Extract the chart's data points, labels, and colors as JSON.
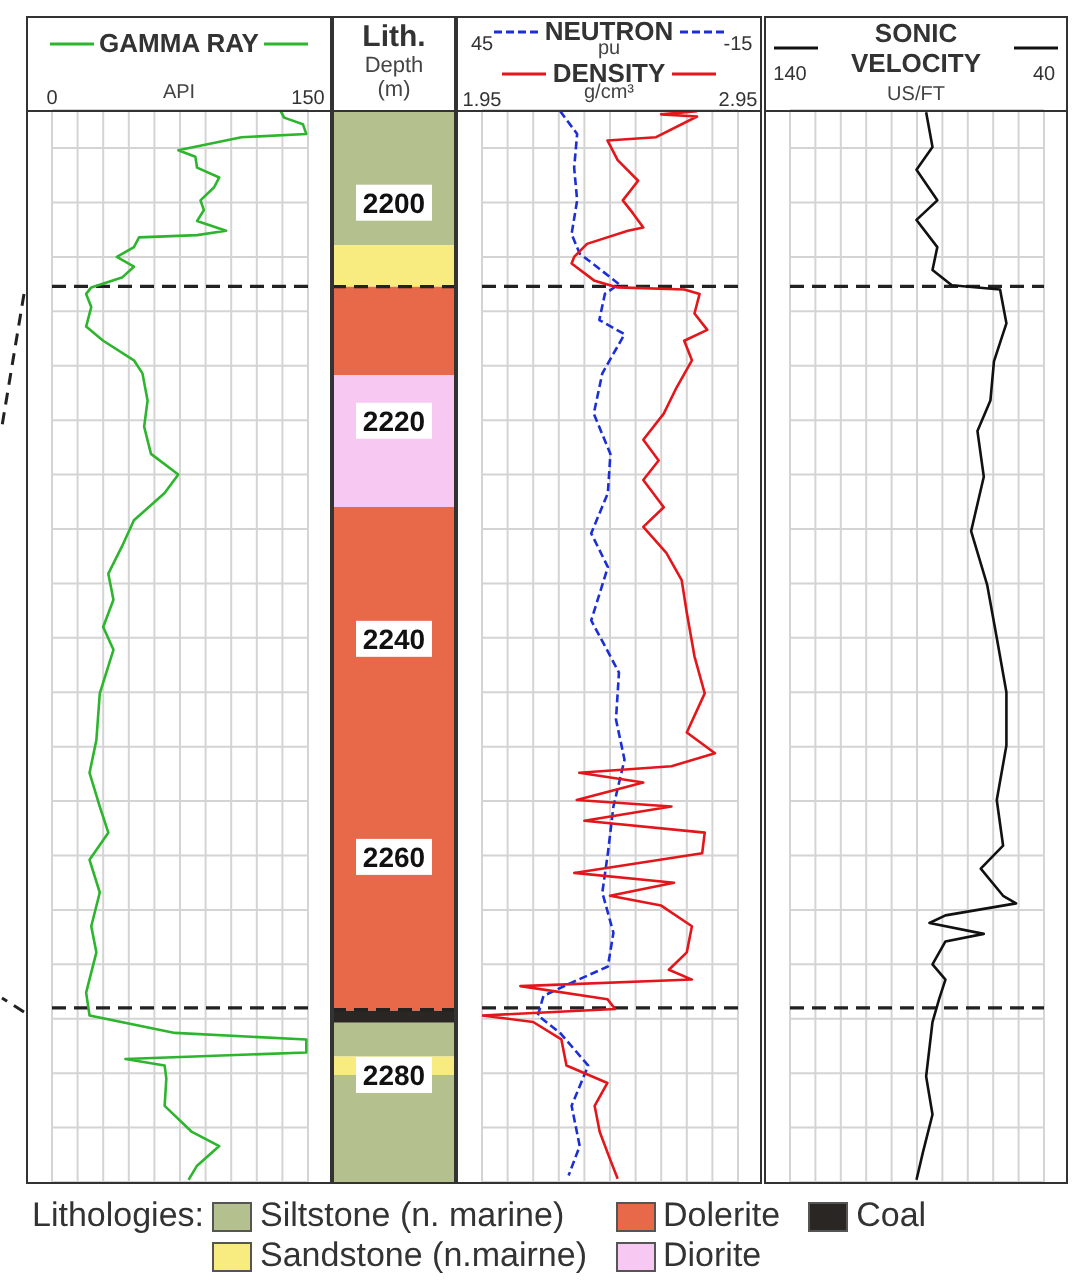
{
  "chart_data": [
    {
      "type": "line",
      "orientation": "horizontal",
      "legend": "top",
      "xlabel": "API",
      "xlim": [
        0,
        150
      ],
      "xticks": [
        0,
        {
          "value": 15,
          "label": null
        },
        {
          "value": 30,
          "label": null
        },
        {
          "value": 45,
          "label": null
        },
        {
          "value": 60,
          "label": null
        },
        {
          "value": 75,
          "label": null
        },
        {
          "value": 90,
          "label": null
        },
        {
          "value": 105,
          "label": null
        },
        {
          "value": 120,
          "label": null
        },
        {
          "value": 135,
          "label": null
        },
        150
      ],
      "ylim": [
        2290,
        2191.5
      ],
      "yticks": [
        {
          "value": 2195,
          "label": null
        },
        {
          "value": 2200,
          "label": null
        },
        {
          "value": 2205,
          "label": null
        },
        {
          "value": 2210,
          "label": null
        },
        {
          "value": 2215,
          "label": null
        },
        {
          "value": 2220,
          "label": null
        },
        {
          "value": 2225,
          "label": null
        },
        {
          "value": 2230,
          "label": null
        },
        {
          "value": 2235,
          "label": null
        },
        {
          "value": 2240,
          "label": null
        },
        {
          "value": 2245,
          "label": null
        },
        {
          "value": 2250,
          "label": null
        },
        {
          "value": 2255,
          "label": null
        },
        {
          "value": 2260,
          "label": null
        },
        {
          "value": 2265,
          "label": null
        },
        {
          "value": 2270,
          "label": null
        },
        {
          "value": 2275,
          "label": null
        },
        {
          "value": 2280,
          "label": null
        },
        {
          "value": 2285,
          "label": null
        }
      ],
      "grid": true,
      "tick_labels": "x",
      "ref_lines": [
        {
          "axis": "y",
          "value": 2207.7,
          "color": "#222222",
          "line_style": "dashed"
        },
        {
          "axis": "y",
          "value": 2274,
          "color": "#222222",
          "line_style": "dashed"
        }
      ],
      "series": [
        {
          "name": "GAMMA RAY",
          "color": "#2db52d",
          "line_style": "solid",
          "x": [
            2191.6,
            2192.2,
            2192.8,
            2193.7,
            2194.0,
            2195.2,
            2195.8,
            2196.8,
            2197.7,
            2198.6,
            2199.8,
            2200.7,
            2201.7,
            2202.6,
            2203.0,
            2203.2,
            2204.1,
            2205.0,
            2205.9,
            2206.9,
            2207.8,
            2208.4,
            2209.6,
            2211.4,
            2212.7,
            2214.5,
            2215.7,
            2218.2,
            2220.6,
            2223.1,
            2225.0,
            2226.7,
            2229.2,
            2231.6,
            2234.1,
            2236.5,
            2239.0,
            2241.1,
            2245.1,
            2249.4,
            2252.4,
            2255.5,
            2257.9,
            2260.4,
            2263.4,
            2266.5,
            2268.9,
            2272.6,
            2274.7,
            2276.3,
            2276.9,
            2278.1,
            2278.7,
            2279.3,
            2280.5,
            2283.0,
            2285.4,
            2286.7,
            2288.5,
            2289.8
          ],
          "values": [
            134,
            136,
            147,
            149,
            111,
            74,
            84,
            85,
            98,
            95,
            87,
            89,
            85,
            102,
            85,
            51,
            48,
            38,
            48,
            41,
            23,
            20,
            23,
            20,
            30,
            48,
            53,
            56,
            54,
            58,
            74,
            66,
            48,
            41,
            33,
            36,
            30,
            36,
            28,
            26,
            22,
            28,
            33,
            22,
            28,
            23,
            26,
            20,
            22,
            72,
            149,
            149,
            43,
            66,
            67,
            66,
            82,
            98,
            85,
            80
          ]
        }
      ]
    },
    {
      "type": "bar",
      "categories": [
        null
      ],
      "title": "Lith.",
      "ylabel": "Depth (m)",
      "legend": "bottom",
      "legend_title": "Lithologies:",
      "ylim": [
        2290,
        2191.5
      ],
      "yticks": [
        2200,
        2220,
        2240,
        2260,
        2280
      ],
      "tick_labels": "y",
      "ref_lines": [
        {
          "axis": "y",
          "value": 2207.7,
          "color": "#222222",
          "line_style": "dashed"
        },
        {
          "axis": "y",
          "value": 2274,
          "color": "#222222",
          "line_style": "dashed"
        }
      ],
      "series": [
        {
          "name": "Siltstone (n. marine)",
          "color": "#b5c08f",
          "values": [
            12.4
          ],
          "base": [
            2191.5
          ]
        },
        {
          "name": "Sandstone (n.mairne)",
          "color": "#f8ec80",
          "values": [
            3.8
          ],
          "base": [
            2203.9
          ]
        },
        {
          "name": "Dolerite",
          "color": "#e8684a",
          "values": [
            8.1
          ],
          "base": [
            2207.7
          ]
        },
        {
          "name": "Diorite",
          "color": "#f7c8f2",
          "values": [
            12.1
          ],
          "base": [
            2215.8
          ]
        },
        {
          "color": "#e8684a",
          "values": [
            46.2
          ],
          "base": [
            2227.9
          ]
        },
        {
          "name": "Coal",
          "color": "#2a2624",
          "values": [
            1.1
          ],
          "base": [
            2274.1
          ]
        },
        {
          "color": "#b5c08f",
          "values": [
            3.1
          ],
          "base": [
            2275.2
          ]
        },
        {
          "color": "#f8ec80",
          "values": [
            1.7
          ],
          "base": [
            2278.3
          ]
        },
        {
          "color": "#b5c08f",
          "values": [
            10
          ],
          "base": [
            2280
          ]
        }
      ]
    },
    {
      "type": "line",
      "orientation": "horizontal",
      "legend": "top",
      "xlabel": "g/cm³",
      "x2label": "pu",
      "xlim": [
        1.95,
        2.95
      ],
      "xticks": [
        1.95,
        {
          "value": 2.05,
          "label": null
        },
        {
          "value": 2.15,
          "label": null
        },
        {
          "value": 2.25,
          "label": null
        },
        {
          "value": 2.35,
          "label": null
        },
        {
          "value": 2.45,
          "label": null
        },
        {
          "value": 2.55,
          "label": null
        },
        {
          "value": 2.65,
          "label": null
        },
        {
          "value": 2.75,
          "label": null
        },
        {
          "value": 2.85,
          "label": null
        },
        2.95
      ],
      "x2lim": [
        45,
        -15
      ],
      "x2ticks": [
        45,
        -15
      ],
      "ylim": [
        2290,
        2191.5
      ],
      "yticks": [
        {
          "value": 2195,
          "label": null
        },
        {
          "value": 2200,
          "label": null
        },
        {
          "value": 2205,
          "label": null
        },
        {
          "value": 2210,
          "label": null
        },
        {
          "value": 2215,
          "label": null
        },
        {
          "value": 2220,
          "label": null
        },
        {
          "value": 2225,
          "label": null
        },
        {
          "value": 2230,
          "label": null
        },
        {
          "value": 2235,
          "label": null
        },
        {
          "value": 2240,
          "label": null
        },
        {
          "value": 2245,
          "label": null
        },
        {
          "value": 2250,
          "label": null
        },
        {
          "value": 2255,
          "label": null
        },
        {
          "value": 2260,
          "label": null
        },
        {
          "value": 2265,
          "label": null
        },
        {
          "value": 2270,
          "label": null
        },
        {
          "value": 2275,
          "label": null
        },
        {
          "value": 2280,
          "label": null
        },
        {
          "value": 2285,
          "label": null
        }
      ],
      "grid": true,
      "tick_labels": "x",
      "ref_lines": [
        {
          "axis": "y",
          "value": 2207.7,
          "color": "#222222",
          "line_style": "dashed"
        },
        {
          "axis": "y",
          "value": 2274,
          "color": "#222222",
          "line_style": "dashed"
        }
      ],
      "series": [
        {
          "name": "NEUTRON",
          "color": "#1c2fd6",
          "line_style": "dashed",
          "axis": "x2",
          "x": [
            2191.6,
            2193.7,
            2196.8,
            2199.8,
            2202.9,
            2204.7,
            2205.9,
            2207.5,
            2208.4,
            2210.8,
            2212.1,
            2215.7,
            2219.4,
            2223.1,
            2226.7,
            2230.4,
            2233.5,
            2238.4,
            2241.7,
            2243.2,
            2247.5,
            2251.2,
            2255.5,
            2259.8,
            2263.4,
            2267.1,
            2270.2,
            2271.7,
            2272.9,
            2274.7,
            2276.3,
            2279.3,
            2283.0,
            2286.7,
            2289.4
          ],
          "values": [
            26.7,
            22.7,
            23.4,
            22.7,
            24,
            22.1,
            18.1,
            12.9,
            16.2,
            17.5,
            11.6,
            16.8,
            18.8,
            14.9,
            15.5,
            19.4,
            15.5,
            19.4,
            14.9,
            12.9,
            13.6,
            11.6,
            14.2,
            15.5,
            16.8,
            14.2,
            15.5,
            24.1,
            30.6,
            31.9,
            26.7,
            20.1,
            24,
            22.1,
            24.7
          ]
        },
        {
          "name": "DENSITY",
          "color": "#e3161b",
          "line_style": "solid",
          "x": [
            2191.6,
            2191.9,
            2192.1,
            2194.0,
            2194.3,
            2196.1,
            2198.0,
            2199.8,
            2201.0,
            2202.3,
            2202.6,
            2203.8,
            2205.0,
            2205.6,
            2207.2,
            2207.8,
            2208.0,
            2208.4,
            2210.2,
            2211.7,
            2212.7,
            2214.5,
            2217.0,
            2219.4,
            2221.8,
            2223.7,
            2225.5,
            2228.0,
            2229.8,
            2232.2,
            2234.7,
            2237.7,
            2241.7,
            2245.1,
            2248.7,
            2250.6,
            2251.8,
            2252.4,
            2253.3,
            2254.9,
            2255.5,
            2256.8,
            2257.9,
            2259.8,
            2261.6,
            2262.5,
            2263.7,
            2264.6,
            2266.5,
            2268.9,
            2270.5,
            2271.4,
            2272.0,
            2273.2,
            2274.1,
            2274.7,
            2275.3,
            2276.9,
            2279.3,
            2280.9,
            2283.0,
            2285.4,
            2287.9,
            2289.7
          ],
          "values": [
            2.79,
            2.65,
            2.79,
            2.63,
            2.44,
            2.48,
            2.56,
            2.5,
            2.54,
            2.58,
            2.52,
            2.36,
            2.31,
            2.3,
            2.39,
            2.48,
            2.74,
            2.8,
            2.78,
            2.83,
            2.74,
            2.77,
            2.71,
            2.66,
            2.58,
            2.64,
            2.58,
            2.66,
            2.58,
            2.67,
            2.73,
            2.75,
            2.78,
            2.82,
            2.75,
            2.86,
            2.69,
            2.33,
            2.58,
            2.32,
            2.69,
            2.35,
            2.82,
            2.81,
            2.31,
            2.7,
            2.45,
            2.65,
            2.77,
            2.75,
            2.68,
            2.77,
            2.1,
            2.44,
            2.47,
            1.95,
            2.15,
            2.26,
            2.28,
            2.44,
            2.39,
            2.41,
            2.45,
            2.48
          ]
        }
      ]
    },
    {
      "type": "line",
      "orientation": "horizontal",
      "legend": "top",
      "xlabel": "US/FT",
      "xlim": [
        140,
        40
      ],
      "xticks": [
        140,
        {
          "value": 130,
          "label": null
        },
        {
          "value": 120,
          "label": null
        },
        {
          "value": 110,
          "label": null
        },
        {
          "value": 100,
          "label": null
        },
        {
          "value": 90,
          "label": null
        },
        {
          "value": 80,
          "label": null
        },
        {
          "value": 70,
          "label": null
        },
        {
          "value": 60,
          "label": null
        },
        {
          "value": 50,
          "label": null
        },
        40
      ],
      "ylim": [
        2290,
        2191.5
      ],
      "yticks": [
        {
          "value": 2195,
          "label": null
        },
        {
          "value": 2200,
          "label": null
        },
        {
          "value": 2205,
          "label": null
        },
        {
          "value": 2210,
          "label": null
        },
        {
          "value": 2215,
          "label": null
        },
        {
          "value": 2220,
          "label": null
        },
        {
          "value": 2225,
          "label": null
        },
        {
          "value": 2230,
          "label": null
        },
        {
          "value": 2235,
          "label": null
        },
        {
          "value": 2240,
          "label": null
        },
        {
          "value": 2245,
          "label": null
        },
        {
          "value": 2250,
          "label": null
        },
        {
          "value": 2255,
          "label": null
        },
        {
          "value": 2260,
          "label": null
        },
        {
          "value": 2265,
          "label": null
        },
        {
          "value": 2270,
          "label": null
        },
        {
          "value": 2275,
          "label": null
        },
        {
          "value": 2280,
          "label": null
        },
        {
          "value": 2285,
          "label": null
        }
      ],
      "grid": true,
      "tick_labels": "x",
      "ref_lines": [
        {
          "axis": "y",
          "value": 2207.7,
          "color": "#222222",
          "line_style": "dashed"
        },
        {
          "axis": "y",
          "value": 2274,
          "color": "#222222",
          "line_style": "dashed"
        }
      ],
      "series": [
        {
          "name": "SONIC VELOCITY",
          "color": "#111111",
          "line_style": "solid",
          "x": [
            2191.7,
            2194.9,
            2197.0,
            2199.8,
            2201.6,
            2204.1,
            2206.2,
            2207.6,
            2208.0,
            2211.1,
            2214.6,
            2218.2,
            2221.0,
            2225.2,
            2230.2,
            2235.1,
            2240.0,
            2245.0,
            2249.9,
            2254.9,
            2259.1,
            2261.2,
            2263.7,
            2264.4,
            2265.5,
            2266.2,
            2267.2,
            2267.9,
            2270.0,
            2271.4,
            2273.2,
            2275.3,
            2280.3,
            2283.8,
            2287.3,
            2289.8
          ],
          "values": [
            86.4,
            83.9,
            90.2,
            82,
            90.2,
            82,
            83.9,
            76.3,
            57.3,
            54.8,
            59.7,
            61.1,
            66.2,
            63.7,
            68.7,
            62.4,
            58.6,
            54.8,
            54.8,
            58.6,
            56.1,
            64.9,
            56.1,
            51,
            78.8,
            85.1,
            63.7,
            78.8,
            83.9,
            78.8,
            81.3,
            83.9,
            86.4,
            83.9,
            87.7,
            90.2
          ]
        }
      ]
    }
  ]
}
